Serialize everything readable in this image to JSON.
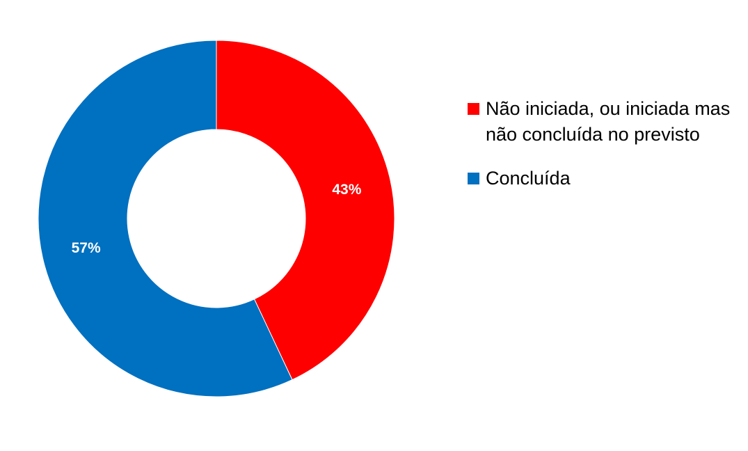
{
  "chart_data": {
    "type": "pie",
    "donut": true,
    "title": "",
    "slices": [
      {
        "label": "Não iniciada, ou iniciada mas não concluída no previsto",
        "value": 43,
        "data_label": "43%",
        "color": "#FF0000"
      },
      {
        "label": "Concluída",
        "value": 57,
        "data_label": "57%",
        "color": "#0070C0"
      }
    ],
    "start_angle": "top, clockwise",
    "legend_position": "right"
  }
}
